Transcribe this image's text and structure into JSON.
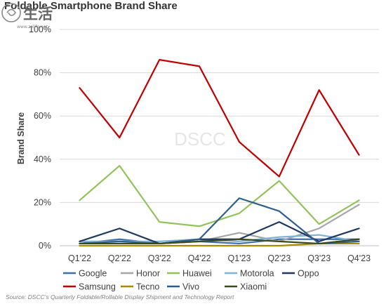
{
  "title": "Foldable Smartphone Brand Share",
  "source": "Source: DSCC's Quarterly Foldable/Rollable Display Shipment and Technology Report",
  "watermark_text": "DSCC",
  "logo_text": "生活",
  "logo_subtext": "www.zelife.net",
  "chart_data": {
    "type": "line",
    "title": "Foldable Smartphone Brand Share",
    "xlabel": "",
    "ylabel": "Brand Share",
    "categories": [
      "Q1'22",
      "Q2'22",
      "Q3'22",
      "Q4'22",
      "Q1'23",
      "Q2'23",
      "Q3'23",
      "Q4'23"
    ],
    "ylim": [
      0,
      100
    ],
    "yticks": [
      "0%",
      "20%",
      "40%",
      "60%",
      "80%",
      "100%"
    ],
    "grid": true,
    "legend_position": "bottom",
    "series": [
      {
        "name": "Google",
        "color": "#3f6fa6",
        "values": [
          1,
          3,
          1,
          2,
          1,
          3,
          3,
          3
        ]
      },
      {
        "name": "Honor",
        "color": "#a6a6a6",
        "values": [
          1,
          1,
          1,
          2,
          6,
          2,
          8,
          19
        ]
      },
      {
        "name": "Huawei",
        "color": "#92c35a",
        "values": [
          21,
          37,
          11,
          9,
          15,
          30,
          10,
          21
        ]
      },
      {
        "name": "Motorola",
        "color": "#7fb2d9",
        "values": [
          2,
          2,
          2,
          3,
          2,
          4,
          5,
          2
        ]
      },
      {
        "name": "Oppo",
        "color": "#1f3864",
        "values": [
          2,
          8,
          1,
          3,
          3,
          11,
          2,
          8
        ]
      },
      {
        "name": "Samsung",
        "color": "#c00000",
        "values": [
          73,
          50,
          86,
          83,
          48,
          32,
          72,
          42
        ]
      },
      {
        "name": "Tecno",
        "color": "#a68a00",
        "values": [
          0,
          0,
          0,
          0,
          0,
          0,
          1,
          1
        ]
      },
      {
        "name": "Vivo",
        "color": "#2e5f8a",
        "values": [
          1,
          2,
          1,
          3,
          22,
          16,
          1,
          2
        ]
      },
      {
        "name": "Xiaomi",
        "color": "#3a4a1e",
        "values": [
          1,
          1,
          1,
          2,
          3,
          2,
          1,
          3
        ]
      }
    ]
  }
}
